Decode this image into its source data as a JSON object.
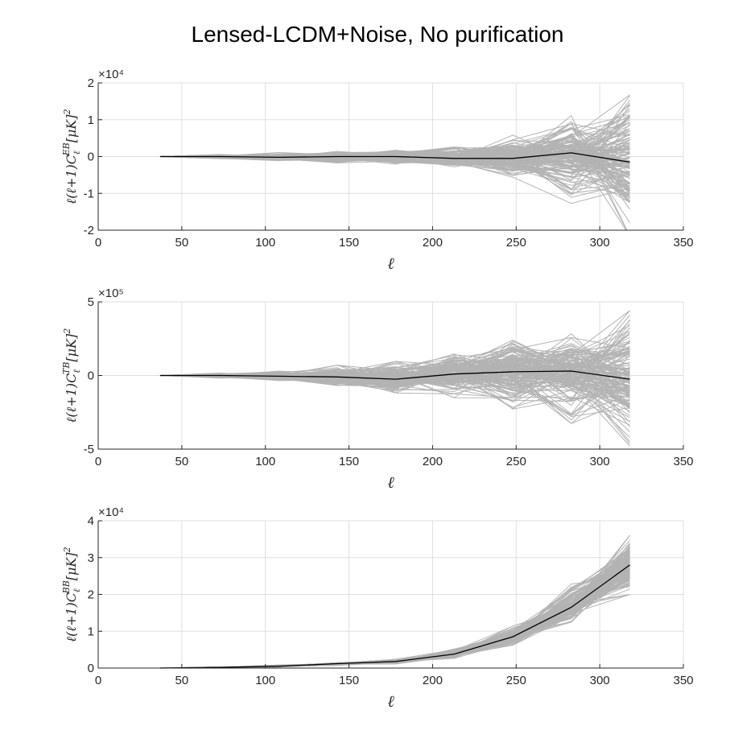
{
  "title": "Lensed-LCDM+Noise, No purification",
  "colors": {
    "realization": "#b3b3b3",
    "mean": "#000000",
    "grid": "#dfdfdf",
    "axis": "#262626"
  },
  "chart_data": [
    {
      "type": "line",
      "id": "EB",
      "xlabel": "ℓ",
      "ylabel": "ℓ(ℓ+1)C_ℓ^EB[μK]²",
      "xlim": [
        0,
        350
      ],
      "ylim": [
        -2,
        2
      ],
      "xticks": [
        "0",
        "50",
        "100",
        "150",
        "200",
        "250",
        "300",
        "350"
      ],
      "yticks": [
        "-2",
        "-1",
        "0",
        "1",
        "2"
      ],
      "exponent_label": "×10⁴",
      "y_scale": 10000,
      "grid": true,
      "x": [
        37,
        73,
        108,
        143,
        178,
        213,
        248,
        283,
        318
      ],
      "mean": [
        0,
        0,
        -0.02,
        0.0,
        0.0,
        -0.05,
        -0.05,
        0.1,
        -0.15
      ],
      "envelope_upper": [
        0,
        0.05,
        0.1,
        0.15,
        0.18,
        0.22,
        0.5,
        1.1,
        1.7
      ],
      "envelope_lower": [
        0,
        -0.05,
        -0.1,
        -0.15,
        -0.18,
        -0.25,
        -0.55,
        -1.1,
        -1.9
      ],
      "n_realizations": 150
    },
    {
      "type": "line",
      "id": "TB",
      "xlabel": "ℓ",
      "ylabel": "ℓ(ℓ+1)C_ℓ^TB[μK]²",
      "xlim": [
        0,
        350
      ],
      "ylim": [
        -5,
        5
      ],
      "xticks": [
        "0",
        "50",
        "100",
        "150",
        "200",
        "250",
        "300",
        "350"
      ],
      "yticks": [
        "-5",
        "0",
        "5"
      ],
      "exponent_label": "×10⁵",
      "y_scale": 100000,
      "grid": true,
      "x": [
        37,
        73,
        108,
        143,
        178,
        213,
        248,
        283,
        318
      ],
      "mean": [
        0,
        0,
        -0.05,
        -0.1,
        -0.25,
        0.1,
        0.25,
        0.3,
        -0.25
      ],
      "envelope_upper": [
        0,
        0.15,
        0.3,
        0.6,
        0.8,
        1.4,
        2.3,
        2.5,
        3.8
      ],
      "envelope_lower": [
        0,
        -0.15,
        -0.3,
        -0.6,
        -1.2,
        -1.3,
        -2.0,
        -2.8,
        -4.2
      ],
      "n_realizations": 150
    },
    {
      "type": "line",
      "id": "BB",
      "xlabel": "ℓ",
      "ylabel": "ℓ(ℓ+1)C_ℓ^BB[μK]²",
      "xlim": [
        0,
        350
      ],
      "ylim": [
        0,
        4
      ],
      "xticks": [
        "0",
        "50",
        "100",
        "150",
        "200",
        "250",
        "300",
        "350"
      ],
      "yticks": [
        "0",
        "1",
        "2",
        "3",
        "4"
      ],
      "exponent_label": "×10⁴",
      "y_scale": 10000,
      "grid": true,
      "x": [
        37,
        73,
        108,
        143,
        178,
        213,
        248,
        283,
        318
      ],
      "mean": [
        0,
        0.02,
        0.05,
        0.12,
        0.18,
        0.38,
        0.85,
        1.65,
        2.8
      ],
      "envelope_upper": [
        0,
        0.03,
        0.08,
        0.15,
        0.25,
        0.5,
        1.1,
        2.2,
        3.5
      ],
      "envelope_lower": [
        0,
        0.01,
        0.03,
        0.08,
        0.12,
        0.28,
        0.65,
        1.3,
        2.1
      ],
      "n_realizations": 150
    }
  ]
}
